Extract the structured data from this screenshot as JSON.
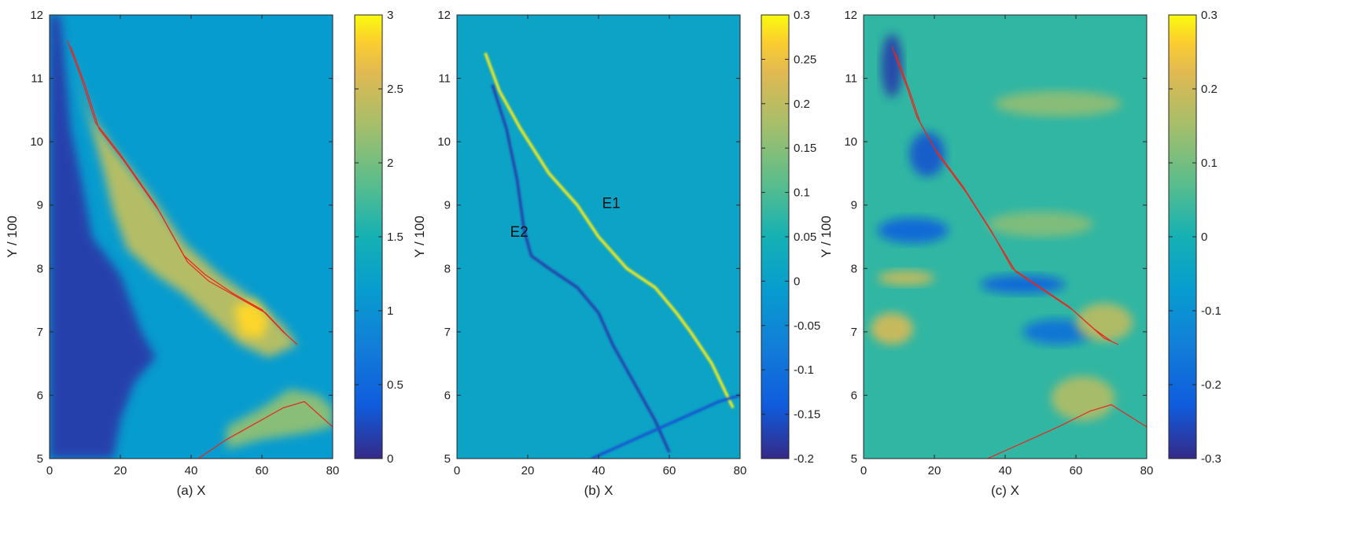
{
  "chart_data": [
    {
      "type": "heatmap",
      "panel": "a",
      "xlabel": "(a) X",
      "ylabel": "Y / 100",
      "xlim": [
        0,
        80
      ],
      "ylim": [
        5,
        12
      ],
      "xticks": [
        0,
        20,
        40,
        60,
        80
      ],
      "yticks": [
        5,
        6,
        7,
        8,
        9,
        10,
        11,
        12
      ],
      "colorbar": {
        "range": [
          0,
          3
        ],
        "ticks": [
          "0",
          "0.5",
          "1",
          "1.5",
          "2",
          "2.5",
          "3"
        ],
        "colormap": "parula"
      },
      "background_level": 0.38,
      "regions": [
        {
          "desc": "dark left region",
          "level": 0.05,
          "poly": [
            [
              0,
              12
            ],
            [
              3,
              12
            ],
            [
              4,
              11.4
            ],
            [
              6,
              10.2
            ],
            [
              9,
              9.4
            ],
            [
              12,
              8.5
            ],
            [
              20,
              7.9
            ],
            [
              26,
              7.0
            ],
            [
              30,
              6.6
            ],
            [
              24,
              6.2
            ],
            [
              20,
              5.6
            ],
            [
              18,
              5
            ],
            [
              0,
              5
            ]
          ]
        },
        {
          "desc": "bright wedge",
          "level": 0.78,
          "poly": [
            [
              5,
              11.5
            ],
            [
              8,
              11.0
            ],
            [
              12,
              10.4
            ],
            [
              18,
              9.9
            ],
            [
              28,
              9.2
            ],
            [
              38,
              8.4
            ],
            [
              48,
              7.9
            ],
            [
              58,
              7.5
            ],
            [
              66,
              7.1
            ],
            [
              70,
              6.8
            ],
            [
              62,
              6.6
            ],
            [
              54,
              6.8
            ],
            [
              46,
              7.2
            ],
            [
              38,
              7.6
            ],
            [
              30,
              7.9
            ],
            [
              22,
              8.3
            ],
            [
              18,
              8.9
            ],
            [
              15,
              9.6
            ],
            [
              12,
              10.2
            ],
            [
              9,
              10.8
            ]
          ]
        },
        {
          "desc": "bright spot",
          "level": 0.95,
          "poly": [
            [
              52,
              7.4
            ],
            [
              58,
              7.5
            ],
            [
              62,
              7.2
            ],
            [
              60,
              6.9
            ],
            [
              54,
              6.95
            ]
          ]
        },
        {
          "desc": "lower right band",
          "level": 0.7,
          "poly": [
            [
              50,
              5.5
            ],
            [
              60,
              5.8
            ],
            [
              68,
              6.1
            ],
            [
              76,
              6.0
            ],
            [
              80,
              5.8
            ],
            [
              80,
              5.5
            ],
            [
              72,
              5.4
            ],
            [
              60,
              5.3
            ],
            [
              50,
              5.15
            ]
          ]
        }
      ],
      "red_contours": [
        [
          [
            5,
            11.6
          ],
          [
            9,
            11
          ],
          [
            13,
            10.3
          ],
          [
            20,
            9.8
          ],
          [
            30,
            9.0
          ],
          [
            38,
            8.2
          ],
          [
            44,
            7.9
          ],
          [
            52,
            7.6
          ],
          [
            60,
            7.35
          ],
          [
            66,
            7.0
          ],
          [
            70,
            6.8
          ]
        ],
        [
          [
            6,
            11.5
          ],
          [
            10,
            10.9
          ],
          [
            14,
            10.2
          ],
          [
            21,
            9.7
          ],
          [
            31,
            8.9
          ],
          [
            39,
            8.1
          ],
          [
            45,
            7.8
          ],
          [
            53,
            7.55
          ],
          [
            61,
            7.3
          ],
          [
            67,
            6.95
          ]
        ],
        [
          [
            42,
            5
          ],
          [
            50,
            5.3
          ],
          [
            58,
            5.55
          ],
          [
            66,
            5.8
          ],
          [
            72,
            5.9
          ],
          [
            80,
            5.5
          ]
        ]
      ]
    },
    {
      "type": "heatmap",
      "panel": "b",
      "xlabel": "(b) X",
      "ylabel": "Y / 100",
      "xlim": [
        0,
        80
      ],
      "ylim": [
        5,
        12
      ],
      "xticks": [
        0,
        20,
        40,
        60,
        80
      ],
      "yticks": [
        5,
        6,
        7,
        8,
        9,
        10,
        11,
        12
      ],
      "colorbar": {
        "range": [
          -0.2,
          0.3
        ],
        "ticks": [
          "-0.2",
          "-0.15",
          "-0.1",
          "-0.05",
          "0",
          "0.05",
          "0.1",
          "0.15",
          "0.2",
          "0.25",
          "0.3"
        ],
        "colormap": "parula"
      },
      "background_level": 0.42,
      "lines": [
        {
          "desc": "E1 bright ridge",
          "level": 0.98,
          "points": [
            [
              8,
              11.4
            ],
            [
              12,
              10.8
            ],
            [
              18,
              10.2
            ],
            [
              26,
              9.5
            ],
            [
              34,
              9.0
            ],
            [
              40,
              8.5
            ],
            [
              48,
              8.0
            ],
            [
              56,
              7.7
            ],
            [
              62,
              7.3
            ],
            [
              66,
              7.0
            ],
            [
              72,
              6.5
            ],
            [
              78,
              5.8
            ]
          ]
        },
        {
          "desc": "E2 dark ridge",
          "level": 0.05,
          "points": [
            [
              10,
              10.9
            ],
            [
              14,
              10.2
            ],
            [
              17,
              9.4
            ],
            [
              19,
              8.6
            ],
            [
              21,
              8.2
            ],
            [
              26,
              8.0
            ],
            [
              34,
              7.7
            ],
            [
              40,
              7.3
            ],
            [
              44,
              6.8
            ],
            [
              50,
              6.2
            ],
            [
              56,
              5.6
            ],
            [
              60,
              5.1
            ]
          ]
        },
        {
          "desc": "lower dark line",
          "level": 0.1,
          "points": [
            [
              38,
              5
            ],
            [
              50,
              5.3
            ],
            [
              62,
              5.6
            ],
            [
              74,
              5.9
            ],
            [
              80,
              6.0
            ]
          ]
        }
      ],
      "annotations": [
        {
          "text": "E1",
          "x": 41,
          "y": 8.95
        },
        {
          "text": "E2",
          "x": 15,
          "y": 8.5
        }
      ]
    },
    {
      "type": "heatmap",
      "panel": "c",
      "xlabel": "(c) X",
      "ylabel": "Y / 100",
      "xlim": [
        0,
        80
      ],
      "ylim": [
        5,
        12
      ],
      "xticks": [
        0,
        20,
        40,
        60,
        80
      ],
      "yticks": [
        5,
        6,
        7,
        8,
        9,
        10,
        11,
        12
      ],
      "colorbar": {
        "range": [
          -0.3,
          0.3
        ],
        "ticks": [
          "-0.3",
          "-0.2",
          "-0.1",
          "0",
          "0.1",
          "0.2",
          "0.3"
        ],
        "colormap": "parula"
      },
      "background_level": 0.55,
      "blobs": [
        {
          "level": 0.05,
          "cx": 8,
          "cy": 11.2,
          "rx": 3,
          "ry": 0.5
        },
        {
          "level": 0.1,
          "cx": 18,
          "cy": 9.8,
          "rx": 5,
          "ry": 0.35
        },
        {
          "level": 0.15,
          "cx": 14,
          "cy": 8.6,
          "rx": 10,
          "ry": 0.2
        },
        {
          "level": 0.15,
          "cx": 45,
          "cy": 7.75,
          "rx": 12,
          "ry": 0.15
        },
        {
          "level": 0.2,
          "cx": 55,
          "cy": 7.0,
          "rx": 10,
          "ry": 0.2
        },
        {
          "level": 0.85,
          "cx": 8,
          "cy": 7.05,
          "rx": 6,
          "ry": 0.25
        },
        {
          "level": 0.82,
          "cx": 12,
          "cy": 7.85,
          "rx": 8,
          "ry": 0.12
        },
        {
          "level": 0.8,
          "cx": 68,
          "cy": 7.15,
          "rx": 8,
          "ry": 0.3
        },
        {
          "level": 0.78,
          "cx": 62,
          "cy": 5.95,
          "rx": 9,
          "ry": 0.35
        },
        {
          "level": 0.72,
          "cx": 55,
          "cy": 10.6,
          "rx": 18,
          "ry": 0.2
        },
        {
          "level": 0.7,
          "cx": 50,
          "cy": 8.7,
          "rx": 15,
          "ry": 0.2
        }
      ],
      "red_contours": [
        [
          [
            8,
            11.5
          ],
          [
            12,
            10.9
          ],
          [
            15,
            10.4
          ],
          [
            20,
            9.9
          ],
          [
            28,
            9.3
          ],
          [
            36,
            8.6
          ],
          [
            42,
            8.0
          ],
          [
            50,
            7.7
          ],
          [
            58,
            7.4
          ],
          [
            64,
            7.1
          ],
          [
            68,
            6.9
          ],
          [
            72,
            6.8
          ]
        ],
        [
          [
            9,
            11.4
          ],
          [
            13,
            10.8
          ],
          [
            16,
            10.3
          ],
          [
            21,
            9.8
          ],
          [
            29,
            9.2
          ],
          [
            37,
            8.5
          ],
          [
            43,
            7.95
          ],
          [
            51,
            7.65
          ],
          [
            59,
            7.35
          ],
          [
            65,
            7.05
          ],
          [
            70,
            6.85
          ]
        ],
        [
          [
            35,
            5
          ],
          [
            45,
            5.25
          ],
          [
            55,
            5.5
          ],
          [
            64,
            5.75
          ],
          [
            70,
            5.85
          ],
          [
            80,
            5.5
          ]
        ]
      ]
    }
  ]
}
